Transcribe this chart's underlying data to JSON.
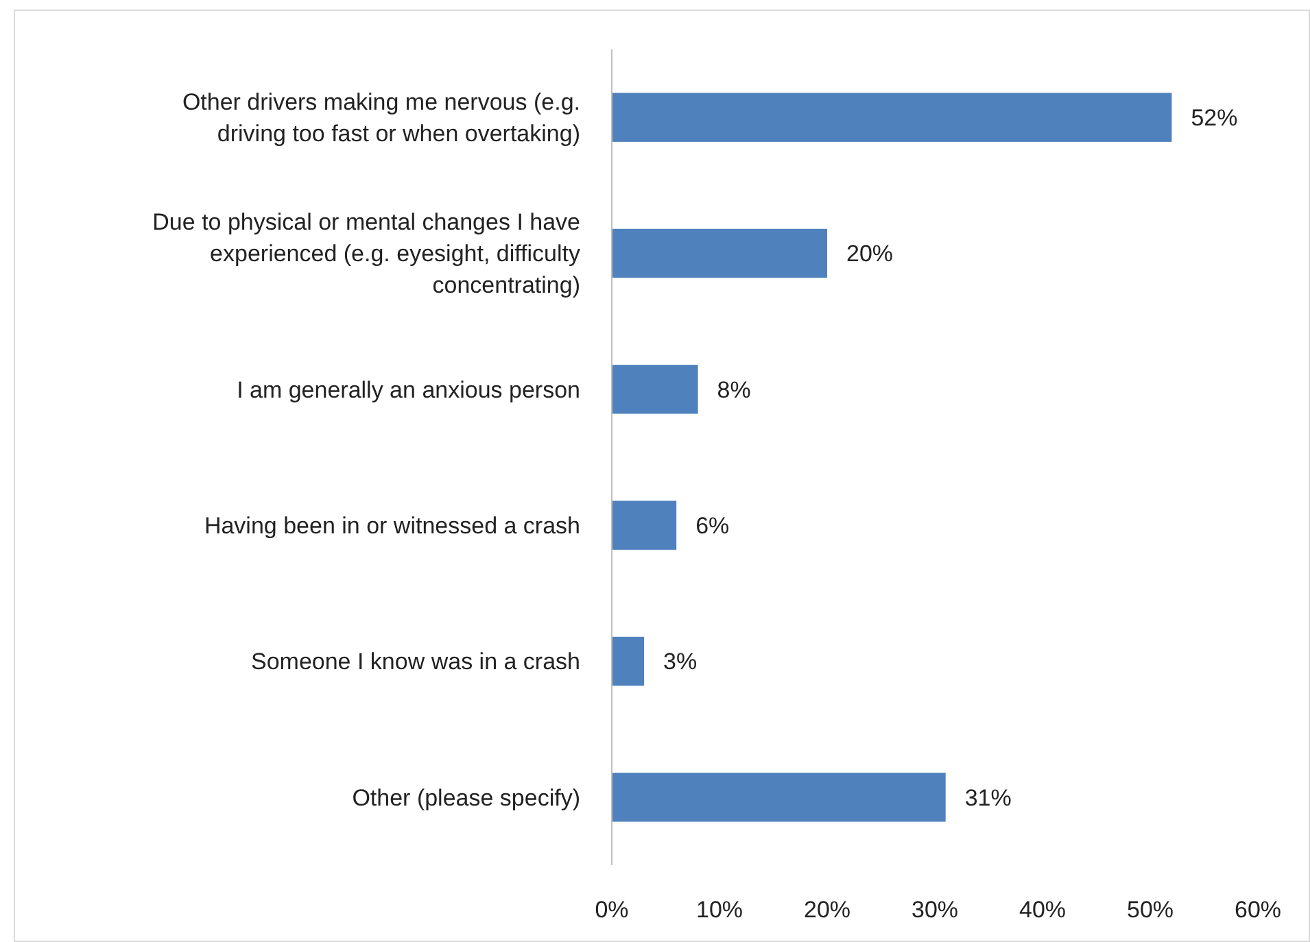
{
  "chart_data": {
    "type": "bar",
    "orientation": "horizontal",
    "categories": [
      "Other drivers making me nervous (e.g. driving too fast or when overtaking)",
      "Due to physical or mental changes I have experienced (e.g. eyesight, difficulty concentrating)",
      "I am generally an anxious person",
      "Having been in or witnessed a crash",
      "Someone I know was in a crash",
      "Other (please specify)"
    ],
    "values": [
      52,
      20,
      8,
      6,
      3,
      31
    ],
    "value_labels": [
      "52%",
      "20%",
      "8%",
      "6%",
      "3%",
      "31%"
    ],
    "color": "#4f81bd",
    "xlim": [
      0,
      60
    ],
    "xticks": [
      {
        "value": 0,
        "label": "0%"
      },
      {
        "value": 10,
        "label": "10%"
      },
      {
        "value": 20,
        "label": "20%"
      },
      {
        "value": 30,
        "label": "30%"
      },
      {
        "value": 40,
        "label": "40%"
      },
      {
        "value": 50,
        "label": "50%"
      },
      {
        "value": 60,
        "label": "60%"
      }
    ],
    "grid": false
  }
}
